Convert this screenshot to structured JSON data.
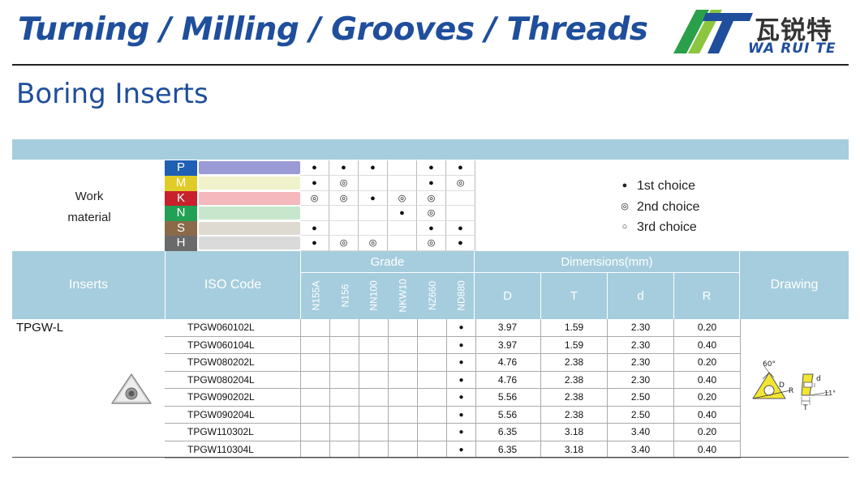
{
  "header": {
    "title": "Turning / Milling / Grooves / Threads",
    "logo_cn": "瓦锐特",
    "logo_en": "WA RUI TE"
  },
  "page_title": "Boring Inserts",
  "work_material": {
    "label_line1": "Work",
    "label_line2": "material",
    "materials": [
      {
        "letter": "P",
        "color": "#1f5fb4",
        "bar": "#9a9ad6"
      },
      {
        "letter": "M",
        "color": "#e0cc28",
        "bar": "#f0f2cc"
      },
      {
        "letter": "K",
        "color": "#c8202c",
        "bar": "#f5b8bc"
      },
      {
        "letter": "N",
        "color": "#22a055",
        "bar": "#c8e6cc"
      },
      {
        "letter": "S",
        "color": "#8a6a48",
        "bar": "#dedad2"
      },
      {
        "letter": "H",
        "color": "#6a6a6a",
        "bar": "#dadada"
      }
    ],
    "grade_matrix": [
      [
        "●",
        "●",
        "●",
        "",
        "●",
        "●"
      ],
      [
        "●",
        "◎",
        "",
        "",
        "●",
        "◎"
      ],
      [
        "◎",
        "◎",
        "●",
        "◎",
        "◎",
        ""
      ],
      [
        "",
        "",
        "",
        "●",
        "◎",
        ""
      ],
      [
        "●",
        "",
        "",
        "",
        "●",
        "●"
      ],
      [
        "●",
        "◎",
        "◎",
        "",
        "◎",
        "●"
      ]
    ]
  },
  "legend": [
    {
      "symbol": "●",
      "label": "1st choice"
    },
    {
      "symbol": "◎",
      "label": "2nd choice"
    },
    {
      "symbol": "○",
      "label": "3rd choice"
    }
  ],
  "table": {
    "headers": {
      "inserts": "Inserts",
      "iso_code": "ISO Code",
      "grade": "Grade",
      "dimensions": "Dimensions(mm)",
      "drawing": "Drawing"
    },
    "grades": [
      "N155A",
      "N156",
      "NN100",
      "NKW10",
      "NZ660",
      "ND880"
    ],
    "dimension_cols": [
      "D",
      "T",
      "d",
      "R"
    ],
    "insert_name": "TPGW-L",
    "rows": [
      {
        "iso": "TPGW060102L",
        "grades": [
          "",
          "",
          "",
          "",
          "",
          "●"
        ],
        "D": "3.97",
        "T": "1.59",
        "d": "2.30",
        "R": "0.20"
      },
      {
        "iso": "TPGW060104L",
        "grades": [
          "",
          "",
          "",
          "",
          "",
          "●"
        ],
        "D": "3.97",
        "T": "1.59",
        "d": "2.30",
        "R": "0.40"
      },
      {
        "iso": "TPGW080202L",
        "grades": [
          "",
          "",
          "",
          "",
          "",
          "●"
        ],
        "D": "4.76",
        "T": "2.38",
        "d": "2.30",
        "R": "0.20"
      },
      {
        "iso": "TPGW080204L",
        "grades": [
          "",
          "",
          "",
          "",
          "",
          "●"
        ],
        "D": "4.76",
        "T": "2.38",
        "d": "2.30",
        "R": "0.40"
      },
      {
        "iso": "TPGW090202L",
        "grades": [
          "",
          "",
          "",
          "",
          "",
          "●"
        ],
        "D": "5.56",
        "T": "2.38",
        "d": "2.50",
        "R": "0.20"
      },
      {
        "iso": "TPGW090204L",
        "grades": [
          "",
          "",
          "",
          "",
          "",
          "●"
        ],
        "D": "5.56",
        "T": "2.38",
        "d": "2.50",
        "R": "0.40"
      },
      {
        "iso": "TPGW110302L",
        "grades": [
          "",
          "",
          "",
          "",
          "",
          "●"
        ],
        "D": "6.35",
        "T": "3.18",
        "d": "3.40",
        "R": "0.20"
      },
      {
        "iso": "TPGW110304L",
        "grades": [
          "",
          "",
          "",
          "",
          "",
          "●"
        ],
        "D": "6.35",
        "T": "3.18",
        "d": "3.40",
        "R": "0.40"
      }
    ]
  },
  "drawing_labels": {
    "angle": "60°",
    "clearance": "11°",
    "D": "D",
    "R": "R",
    "T": "T",
    "d": "d"
  }
}
